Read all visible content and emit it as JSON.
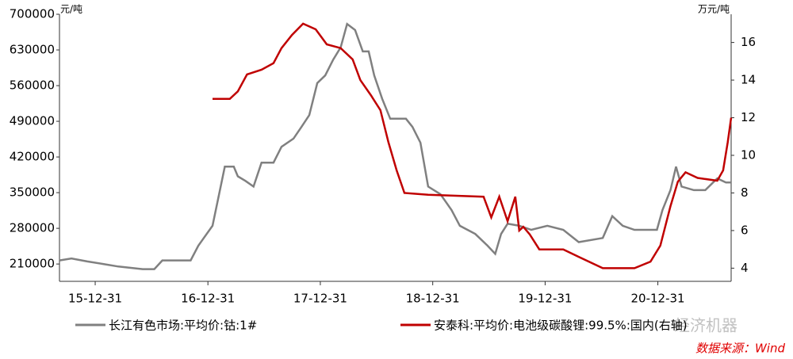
{
  "chart_data": {
    "type": "line",
    "y_unit": "元/吨",
    "y2_unit": "万元/吨",
    "source": "数据来源：Wind",
    "watermark": "经济机器",
    "xlim": [
      "15-09-06",
      "21-08-26"
    ],
    "xticks": [
      "15-12-31",
      "16-12-31",
      "17-12-31",
      "18-12-31",
      "19-12-31",
      "20-12-31"
    ],
    "ylim": [
      176000,
      700000
    ],
    "yticks": [
      210000,
      280000,
      350000,
      420000,
      490000,
      560000,
      630000,
      700000
    ],
    "y2lim": [
      3.3,
      17.5
    ],
    "y2ticks": [
      4,
      6,
      8,
      10,
      12,
      14,
      16
    ],
    "series": [
      {
        "name": "长江有色市场:平均价:钴:1#",
        "color": "#808080",
        "axis": "y",
        "x": [
          "15-09-06",
          "15-10-15",
          "15-12-05",
          "16-01-26",
          "16-03-15",
          "16-06-02",
          "16-07-10",
          "16-08-05",
          "16-11-05",
          "16-11-30",
          "17-01-15",
          "17-02-24",
          "17-03-25",
          "17-04-07",
          "17-05-02",
          "17-05-28",
          "17-06-23",
          "17-08-01",
          "17-08-27",
          "17-10-05",
          "17-10-31",
          "17-11-25",
          "17-12-21",
          "18-01-16",
          "18-02-11",
          "18-03-07",
          "18-03-28",
          "18-04-23",
          "18-05-18",
          "18-06-06",
          "18-06-24",
          "18-07-20",
          "18-08-15",
          "18-10-05",
          "18-10-26",
          "18-11-21",
          "18-12-16",
          "19-01-25",
          "19-03-02",
          "19-03-29",
          "19-05-18",
          "19-06-27",
          "19-07-22",
          "19-08-10",
          "19-08-31",
          "19-10-08",
          "19-11-16",
          "20-01-07",
          "20-02-28",
          "20-04-18",
          "20-07-05",
          "20-08-05",
          "20-09-08",
          "20-10-16",
          "20-12-28",
          "21-01-15",
          "21-02-10",
          "21-02-28",
          "21-03-18",
          "21-04-27",
          "21-06-03",
          "21-07-12",
          "21-08-09",
          "21-08-26"
        ],
        "values": [
          217000,
          221000,
          215000,
          210000,
          205000,
          200000,
          200000,
          217000,
          217000,
          246000,
          285000,
          401000,
          401000,
          382000,
          373000,
          362000,
          409000,
          409000,
          440000,
          456000,
          479000,
          502000,
          565000,
          580000,
          611000,
          635000,
          681000,
          669000,
          627000,
          627000,
          580000,
          534000,
          495000,
          495000,
          479000,
          448000,
          362000,
          347000,
          316000,
          285000,
          269000,
          246000,
          230000,
          269000,
          289000,
          285000,
          277000,
          285000,
          277000,
          253000,
          261000,
          304000,
          285000,
          277000,
          277000,
          316000,
          355000,
          401000,
          362000,
          355000,
          355000,
          378000,
          370000,
          370000
        ]
      },
      {
        "name": "安泰科:平均价:电池级碳酸锂:99.5%:国内(右轴)",
        "color": "#c00000",
        "axis": "y2",
        "x": [
          "17-01-15",
          "17-03-12",
          "17-04-07",
          "17-05-07",
          "17-06-23",
          "17-08-01",
          "17-08-27",
          "17-09-30",
          "17-11-05",
          "17-12-16",
          "18-01-21",
          "18-03-07",
          "18-04-15",
          "18-05-10",
          "18-06-13",
          "18-07-14",
          "18-08-09",
          "18-09-05",
          "18-09-30",
          "18-12-16",
          "19-06-14",
          "19-07-09",
          "19-08-04",
          "19-08-31",
          "19-09-25",
          "19-10-08",
          "19-10-21",
          "19-11-11",
          "19-12-12",
          "20-02-28",
          "20-04-18",
          "20-07-05",
          "20-10-16",
          "20-12-07",
          "21-01-08",
          "21-02-10",
          "21-03-06",
          "21-03-31",
          "21-05-09",
          "21-07-12",
          "21-07-31",
          "21-08-15",
          "21-08-26"
        ],
        "values": [
          13.0,
          13.0,
          13.4,
          14.3,
          14.55,
          14.9,
          15.7,
          16.4,
          17.0,
          16.7,
          15.9,
          15.7,
          15.1,
          14.0,
          13.2,
          12.4,
          10.7,
          9.2,
          8.0,
          7.9,
          7.8,
          6.7,
          7.8,
          6.5,
          7.8,
          6.0,
          6.2,
          5.8,
          5.0,
          5.0,
          4.6,
          4.0,
          4.0,
          4.35,
          5.2,
          7.3,
          8.6,
          9.1,
          8.8,
          8.65,
          9.2,
          10.7,
          12.0
        ]
      }
    ]
  }
}
